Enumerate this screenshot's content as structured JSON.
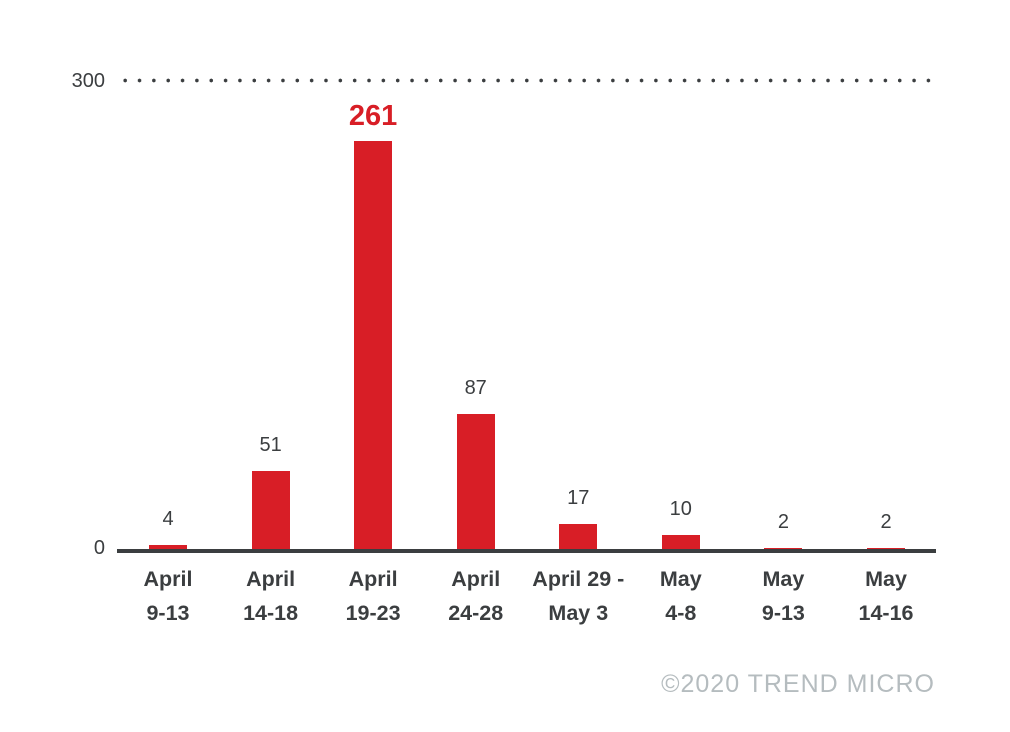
{
  "chart_data": {
    "type": "bar",
    "title": "",
    "xlabel": "",
    "ylabel": "",
    "categories": [
      "April 9-13",
      "April 14-18",
      "April 19-23",
      "April 24-28",
      "April 29 - May 3",
      "May 4-8",
      "May 9-13",
      "May 14-16"
    ],
    "category_lines": [
      [
        "April",
        "9-13"
      ],
      [
        "April",
        "14-18"
      ],
      [
        "April",
        "19-23"
      ],
      [
        "April",
        "24-28"
      ],
      [
        "April 29 -",
        "May 3"
      ],
      [
        "May",
        "4-8"
      ],
      [
        "May",
        "9-13"
      ],
      [
        "May",
        "14-16"
      ]
    ],
    "values": [
      4,
      51,
      261,
      87,
      17,
      10,
      2,
      2
    ],
    "highlight_index": 2,
    "ylim": [
      0,
      300
    ],
    "yticks": [
      "300",
      "0"
    ],
    "grid": "single dotted gridline at y=300, horizontal axis at y=0",
    "legend": "none",
    "bar_color": "#d81e26",
    "axis_color": "#3b3e40",
    "highlight_label_color": "#d81e26",
    "label_color": "#3b3e40"
  },
  "footer": {
    "copyright": "©2020 TREND MICRO"
  }
}
